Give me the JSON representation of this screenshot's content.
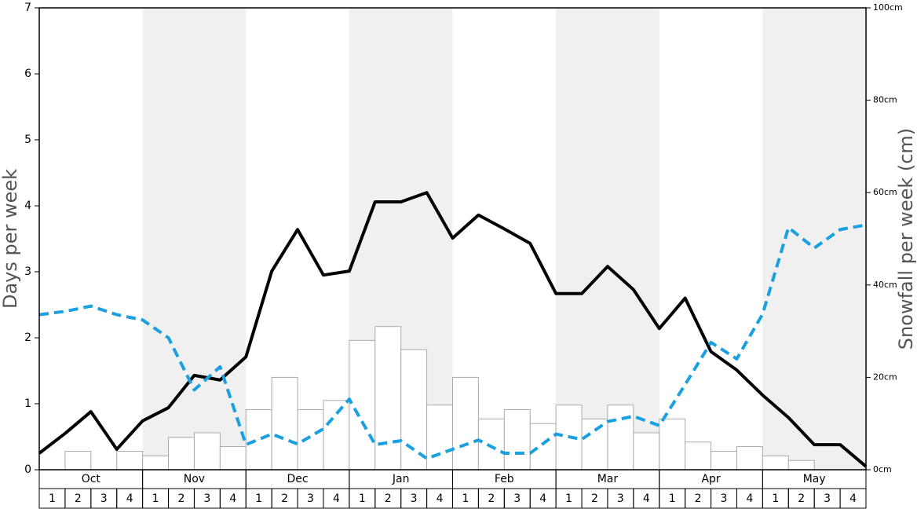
{
  "chart_data": {
    "type": "bar-line",
    "y_label": "Days per week",
    "y2_label": "Snowfall per week (cm)",
    "months": [
      "Oct",
      "Nov",
      "Dec",
      "Jan",
      "Feb",
      "Mar",
      "Apr",
      "May"
    ],
    "weeks": [
      "1",
      "2",
      "3",
      "4"
    ],
    "ylim": [
      0,
      7
    ],
    "yticks": [
      0,
      1,
      2,
      3,
      4,
      5,
      6,
      7
    ],
    "y2lim": [
      0,
      100
    ],
    "y2ticks": [
      {
        "value": 0,
        "label": "0cm"
      },
      {
        "value": 20,
        "label": "20cm"
      },
      {
        "value": 40,
        "label": "40cm"
      },
      {
        "value": 60,
        "label": "60cm"
      },
      {
        "value": 80,
        "label": "80cm"
      },
      {
        "value": 100,
        "label": "100cm"
      }
    ],
    "series": [
      {
        "type": "bar",
        "axis": "y2",
        "color": "#ffffff",
        "values": [
          0,
          4,
          0,
          4,
          3,
          7,
          8,
          5,
          13,
          20,
          13,
          15,
          28,
          31,
          26,
          14,
          20,
          11,
          13,
          10,
          14,
          11,
          14,
          8,
          11,
          6,
          4,
          5,
          3,
          2,
          0,
          0
        ]
      },
      {
        "type": "line",
        "color": "#000000",
        "values": [
          0.25,
          0.55,
          0.88,
          0.31,
          0.74,
          0.94,
          1.43,
          1.36,
          1.71,
          3.01,
          3.64,
          2.95,
          3.01,
          4.06,
          4.06,
          4.2,
          3.51,
          3.86,
          3.65,
          3.43,
          2.67,
          2.67,
          3.08,
          2.73,
          2.14,
          2.6,
          1.79,
          1.51,
          1.13,
          0.79,
          0.38,
          0.38,
          0.05
        ]
      },
      {
        "type": "line",
        "dashed": true,
        "color": "#1a9fe0",
        "values": [
          2.35,
          2.4,
          2.48,
          2.35,
          2.27,
          2.0,
          1.21,
          1.56,
          0.38,
          0.54,
          0.39,
          0.62,
          1.07,
          0.38,
          0.44,
          0.17,
          0.31,
          0.45,
          0.25,
          0.25,
          0.54,
          0.46,
          0.73,
          0.81,
          0.67,
          1.29,
          1.93,
          1.68,
          2.36,
          3.67,
          3.36,
          3.64,
          3.71
        ]
      }
    ]
  }
}
